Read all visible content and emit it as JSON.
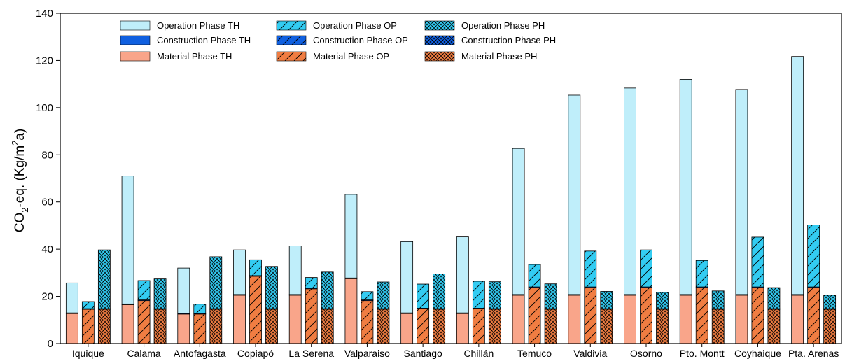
{
  "chart_data": {
    "type": "bar",
    "stacked": true,
    "ylabel": "CO2-eq. (Kg/m2a)",
    "ylabel_parts": {
      "a": "CO",
      "b": "2",
      "c": "-eq. (Kg/m",
      "d": "2",
      "e": "a)"
    },
    "ylim": [
      0,
      140
    ],
    "yticks": [
      0,
      20,
      40,
      60,
      80,
      100,
      120,
      140
    ],
    "grid": false,
    "legend_position": "top-left, inside plot",
    "categories": [
      "Iquique",
      "Calama",
      "Antofagasta",
      "Copiapó",
      "La Serena",
      "Valparaiso",
      "Santiago",
      "Chillán",
      "Temuco",
      "Valdivia",
      "Osorno",
      "Pto. Montt",
      "Coyhaique",
      "Pta. Arenas"
    ],
    "bar_types": [
      "TH",
      "OP",
      "PH"
    ],
    "series": [
      {
        "name": "Material Phase TH",
        "type": "TH",
        "phase": "material",
        "values": [
          12.7,
          16.5,
          12.5,
          20.5,
          20.5,
          27.5,
          12.7,
          12.7,
          20.5,
          20.5,
          20.5,
          20.5,
          20.5,
          20.5
        ]
      },
      {
        "name": "Construction Phase TH",
        "type": "TH",
        "phase": "construction",
        "values": [
          0.3,
          0.3,
          0.3,
          0.3,
          0.3,
          0.3,
          0.3,
          0.3,
          0.3,
          0.3,
          0.3,
          0.3,
          0.3,
          0.3
        ]
      },
      {
        "name": "Operation Phase TH",
        "type": "TH",
        "phase": "operation",
        "values": [
          12.7,
          54.2,
          19.2,
          18.9,
          20.6,
          35.4,
          30.2,
          32.2,
          61.9,
          84.5,
          87.5,
          91.2,
          86.9,
          100.9
        ]
      },
      {
        "name": "Material Phase OP",
        "type": "OP",
        "phase": "material",
        "values": [
          14.5,
          18.2,
          12.5,
          28.5,
          23.2,
          18.2,
          14.7,
          14.7,
          23.7,
          23.7,
          23.7,
          23.7,
          23.7,
          23.7
        ]
      },
      {
        "name": "Construction Phase OP",
        "type": "OP",
        "phase": "construction",
        "values": [
          0.3,
          0.3,
          0.3,
          0.3,
          0.3,
          0.3,
          0.3,
          0.3,
          0.3,
          0.3,
          0.3,
          0.3,
          0.3,
          0.3
        ]
      },
      {
        "name": "Operation Phase OP",
        "type": "OP",
        "phase": "operation",
        "values": [
          3.0,
          8.2,
          3.9,
          6.7,
          4.5,
          3.5,
          10.2,
          11.4,
          9.5,
          15.2,
          15.7,
          11.2,
          21.1,
          26.3
        ]
      },
      {
        "name": "Material Phase PH",
        "type": "PH",
        "phase": "material",
        "values": [
          14.5,
          14.5,
          14.5,
          14.5,
          14.5,
          14.5,
          14.5,
          14.5,
          14.5,
          14.5,
          14.5,
          14.5,
          14.5,
          14.5
        ]
      },
      {
        "name": "Construction Phase PH",
        "type": "PH",
        "phase": "construction",
        "values": [
          0.3,
          0.3,
          0.3,
          0.3,
          0.3,
          0.3,
          0.3,
          0.3,
          0.3,
          0.3,
          0.3,
          0.3,
          0.3,
          0.3
        ]
      },
      {
        "name": "Operation Phase PH",
        "type": "PH",
        "phase": "operation",
        "values": [
          24.9,
          12.6,
          22.0,
          17.9,
          15.5,
          11.3,
          14.7,
          11.4,
          10.5,
          7.3,
          6.9,
          7.5,
          8.9,
          5.7
        ]
      }
    ],
    "legend": [
      [
        "Operation Phase TH",
        "Construction Phase TH",
        "Material Phase TH"
      ],
      [
        "Operation Phase OP",
        "Construction Phase OP",
        "Material Phase OP"
      ],
      [
        "Operation Phase PH",
        "Construction Phase PH",
        "Material Phase PH"
      ]
    ],
    "colors": {
      "operation": "#bfeefa",
      "operation_hatched": "#33ccf2",
      "construction": "#1060e0",
      "material": "#f9a58a",
      "material_hatched": "#f07d42"
    }
  }
}
